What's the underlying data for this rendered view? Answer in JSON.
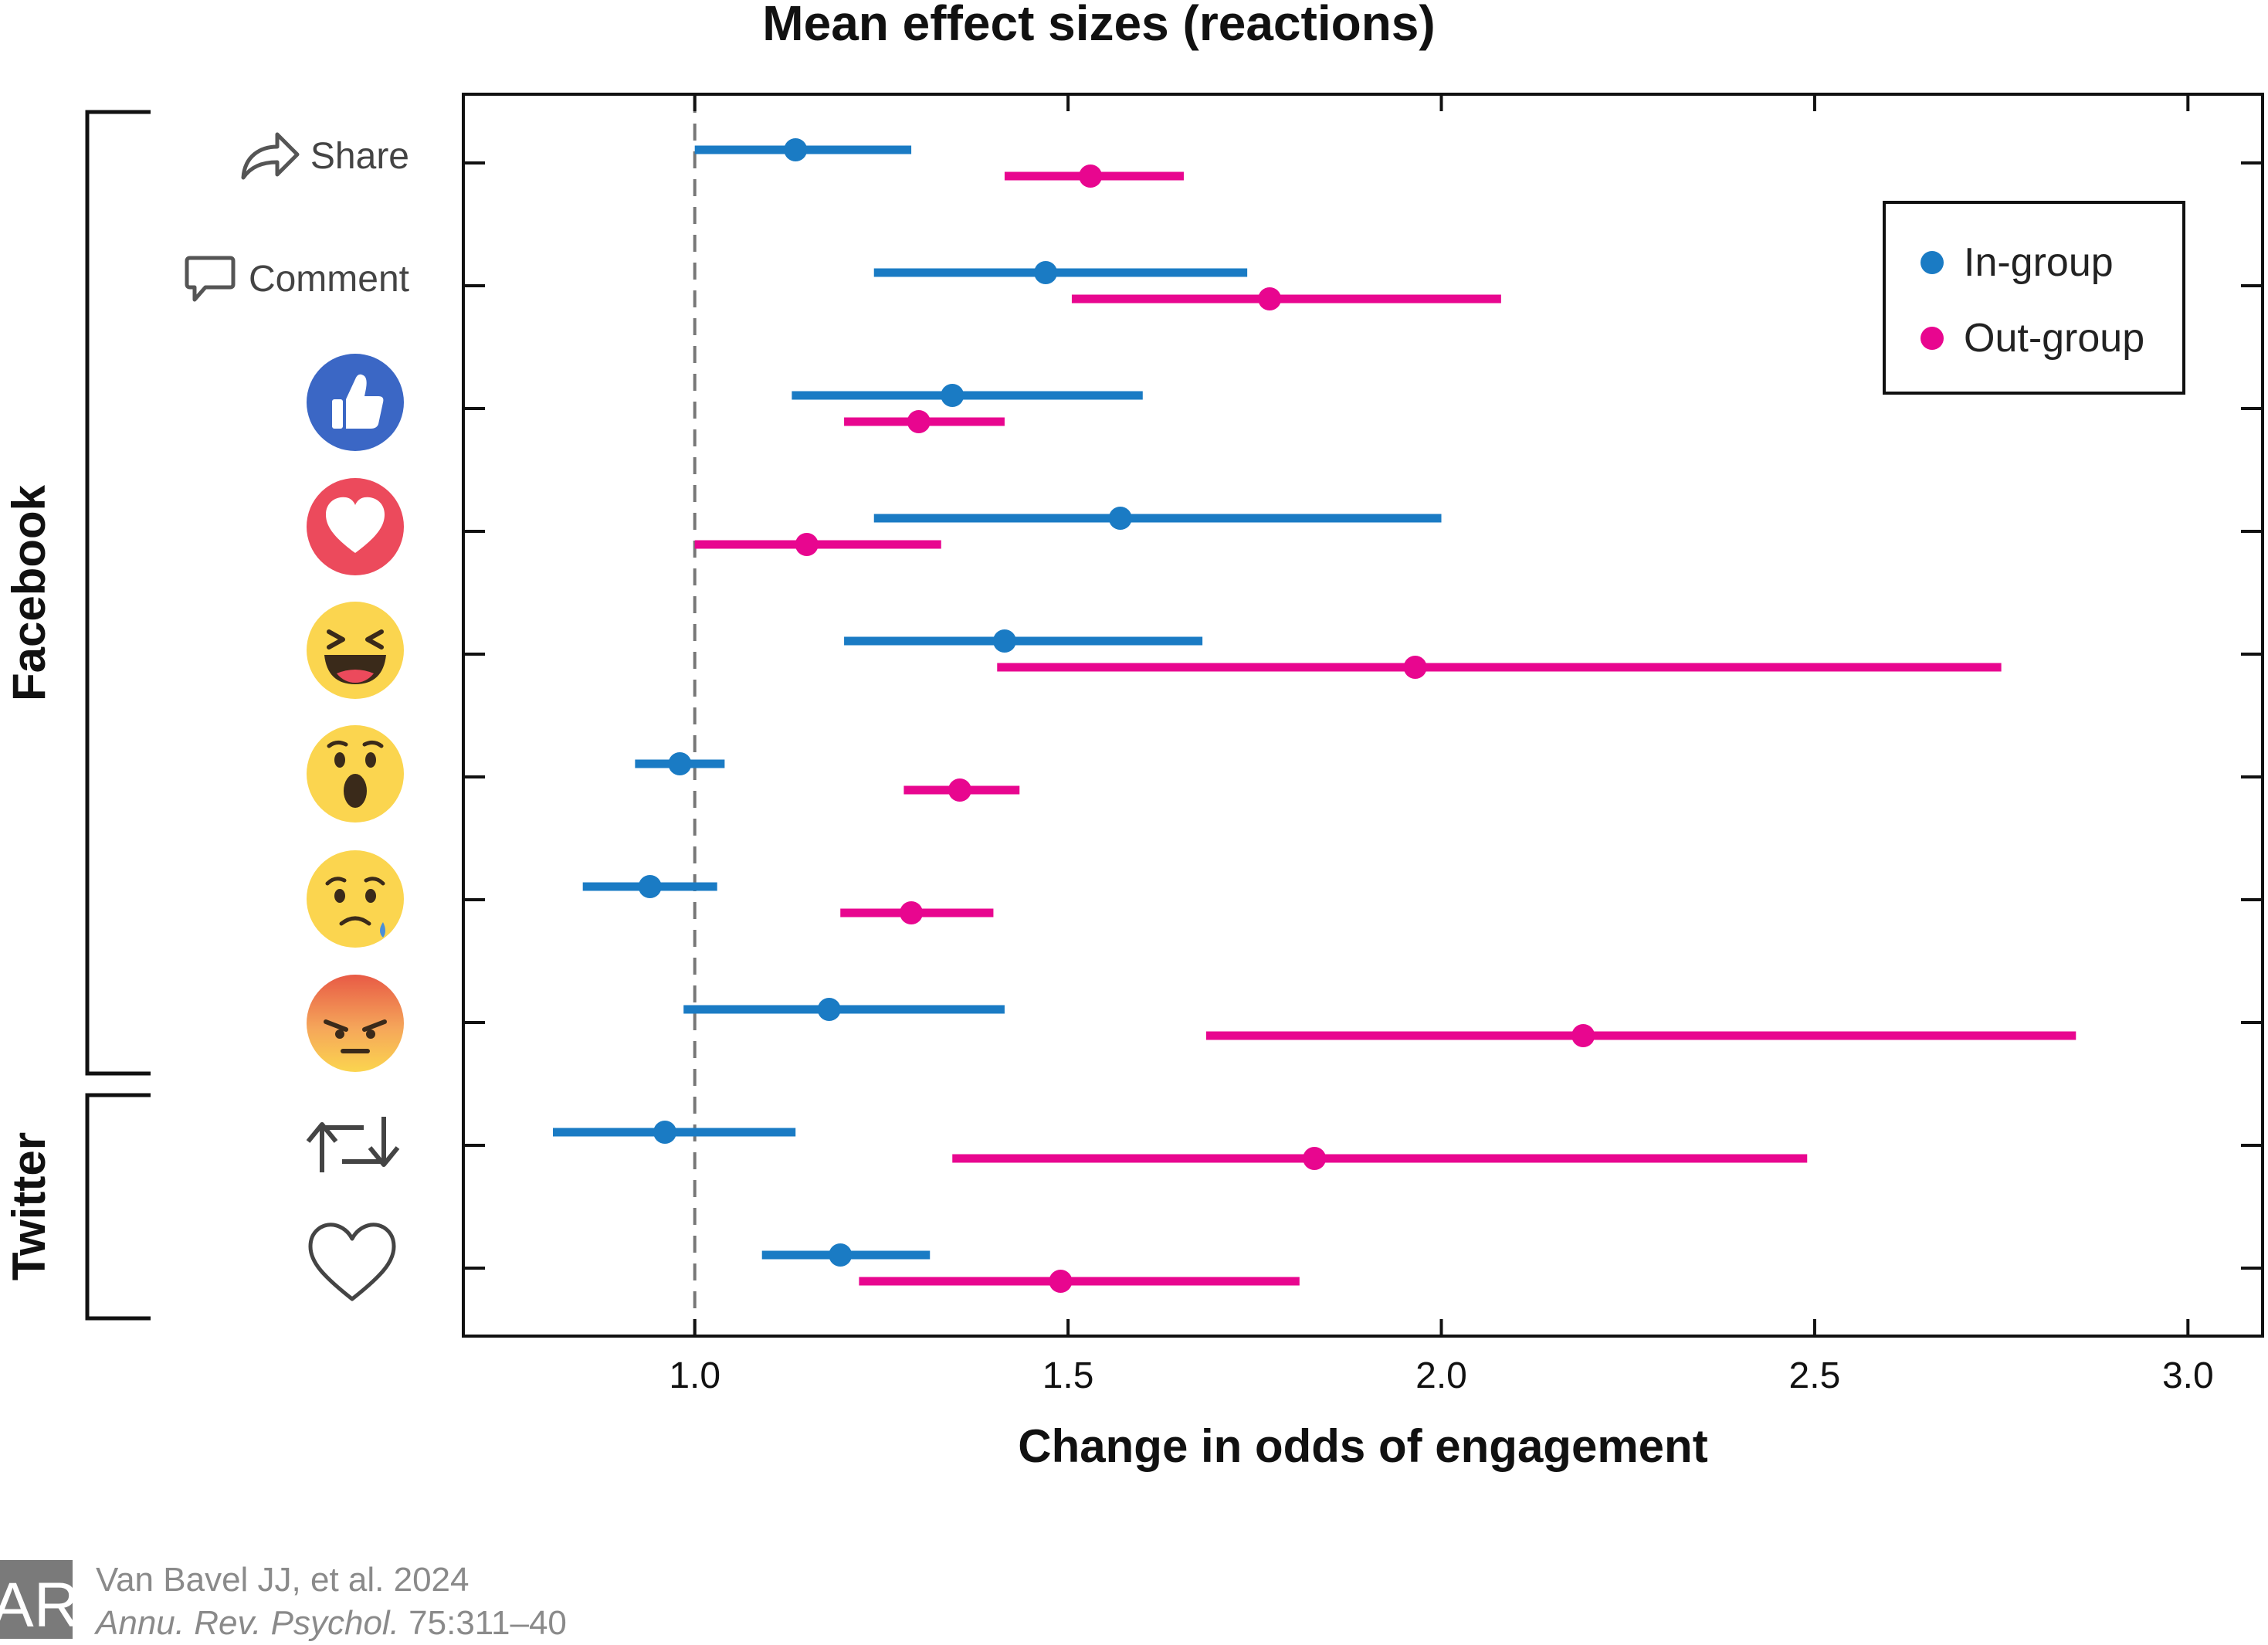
{
  "chart_data": {
    "type": "forest",
    "title": "Mean effect sizes (reactions)",
    "xlabel": "Change in odds of engagement",
    "xlim": [
      0.69,
      3.1
    ],
    "xticks": [
      "1.0",
      "1.5",
      "2.0",
      "2.5",
      "3.0"
    ],
    "reference_line": 1.0,
    "rows": [
      {
        "label": "Share",
        "icon": "share-icon",
        "platform": "Facebook"
      },
      {
        "label": "Comment",
        "icon": "comment-icon",
        "platform": "Facebook"
      },
      {
        "label": "",
        "icon": "like-icon",
        "platform": "Facebook"
      },
      {
        "label": "",
        "icon": "love-icon",
        "platform": "Facebook"
      },
      {
        "label": "",
        "icon": "haha-icon",
        "platform": "Facebook"
      },
      {
        "label": "",
        "icon": "wow-icon",
        "platform": "Facebook"
      },
      {
        "label": "",
        "icon": "sad-icon",
        "platform": "Facebook"
      },
      {
        "label": "",
        "icon": "angry-icon",
        "platform": "Facebook"
      },
      {
        "label": "",
        "icon": "retweet-icon",
        "platform": "Twitter"
      },
      {
        "label": "",
        "icon": "heart-icon",
        "platform": "Twitter"
      }
    ],
    "groups": [
      "Facebook",
      "Twitter"
    ],
    "series": [
      {
        "name": "In-group",
        "color": "#1a7bc4",
        "estimates": [
          1.135,
          1.47,
          1.345,
          1.57,
          1.415,
          0.98,
          0.94,
          1.18,
          0.96,
          1.195
        ],
        "lower": [
          1.0,
          1.24,
          1.13,
          1.24,
          1.2,
          0.92,
          0.85,
          0.985,
          0.81,
          1.09
        ],
        "upper": [
          1.29,
          1.74,
          1.6,
          2.0,
          1.68,
          1.04,
          1.03,
          1.415,
          1.135,
          1.315
        ]
      },
      {
        "name": "Out-group",
        "color": "#e8068f",
        "estimates": [
          1.53,
          1.77,
          1.3,
          1.15,
          1.965,
          1.355,
          1.29,
          2.19,
          1.83,
          1.49
        ],
        "lower": [
          1.415,
          1.505,
          1.2,
          1.0,
          1.405,
          1.28,
          1.195,
          1.685,
          1.345,
          1.22
        ],
        "upper": [
          1.655,
          2.08,
          1.415,
          1.33,
          2.75,
          1.435,
          1.4,
          2.85,
          2.49,
          1.81
        ]
      }
    ],
    "legend": {
      "placement": "top-right"
    }
  },
  "credit": {
    "logo_text": "AR",
    "line1": "Van Bavel JJ, et al. 2024",
    "journal": "Annu. Rev. Psychol.",
    "pages": " 75:311–40"
  }
}
